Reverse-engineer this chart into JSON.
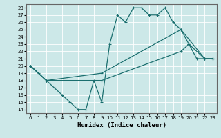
{
  "xlabel": "Humidex (Indice chaleur)",
  "ylabel": "",
  "bg_color": "#cce8e8",
  "grid_color": "#ffffff",
  "line_color": "#1a6e6e",
  "xlim": [
    -0.5,
    23.5
  ],
  "ylim": [
    13.5,
    28.5
  ],
  "yticks": [
    14,
    15,
    16,
    17,
    18,
    19,
    20,
    21,
    22,
    23,
    24,
    25,
    26,
    27,
    28
  ],
  "xticks": [
    0,
    1,
    2,
    3,
    4,
    5,
    6,
    7,
    8,
    9,
    10,
    11,
    12,
    13,
    14,
    15,
    16,
    17,
    18,
    19,
    20,
    21,
    22,
    23
  ],
  "line1_x": [
    0,
    1,
    2,
    3,
    4,
    5,
    6,
    7,
    8,
    9,
    10,
    11,
    12,
    13,
    14,
    15,
    16,
    17,
    18,
    19,
    20,
    21,
    22,
    23
  ],
  "line1_y": [
    20,
    19,
    18,
    17,
    16,
    15,
    14,
    14,
    18,
    15,
    23,
    27,
    26,
    28,
    28,
    27,
    27,
    28,
    26,
    25,
    23,
    21,
    21,
    21
  ],
  "line2_x": [
    0,
    2,
    9,
    19,
    20,
    22,
    23
  ],
  "line2_y": [
    20,
    18,
    18,
    22,
    23,
    21,
    21
  ],
  "line3_x": [
    0,
    2,
    9,
    19,
    22,
    23
  ],
  "line3_y": [
    20,
    18,
    19,
    25,
    21,
    21
  ]
}
